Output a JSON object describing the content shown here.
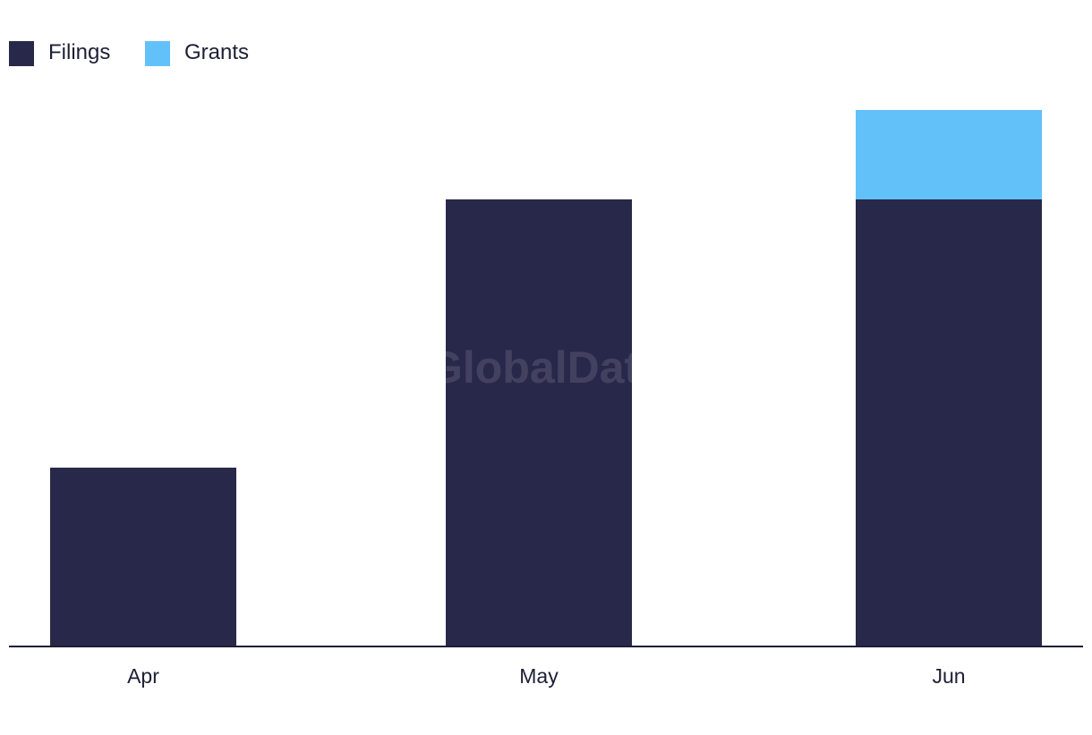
{
  "chart_data": {
    "type": "bar",
    "stacked": true,
    "categories": [
      "Apr",
      "May",
      "Jun"
    ],
    "series": [
      {
        "name": "Filings",
        "color": "#28284a",
        "values": [
          2,
          5,
          5
        ]
      },
      {
        "name": "Grants",
        "color": "#62c1f9",
        "values": [
          0,
          0,
          1
        ]
      }
    ],
    "ylim": [
      0,
      6
    ],
    "grid": false,
    "legend_position": "top-left",
    "watermark": "GlobalData"
  }
}
